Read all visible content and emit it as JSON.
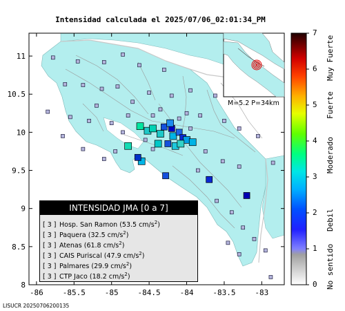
{
  "title": "Intensidad calculada el 2025/07/06_02:01:34_PM",
  "map": {
    "x_ticks": [
      "-86",
      "-85.5",
      "-85",
      "-84.5",
      "-84",
      "-83.5",
      "-83"
    ],
    "x_values": [
      -86,
      -85.5,
      -85,
      -84.5,
      -84,
      -83.5,
      -83
    ],
    "y_ticks": [
      "11",
      "10.5",
      "10",
      "9.5",
      "9",
      "8.5",
      "8"
    ],
    "y_values": [
      11,
      10.5,
      10,
      9.5,
      9,
      8.5,
      8
    ],
    "xlim": [
      -86.1,
      -82.7
    ],
    "ylim": [
      8.0,
      11.3
    ],
    "land_color": "#b3eeee",
    "sea_color": "#ffffff",
    "border_color": "#c8c8c8",
    "road_color": "#9a9a9a",
    "stations": [
      {
        "lon": -84.62,
        "lat": 10.08,
        "level": 3,
        "color": "#00e6a0"
      },
      {
        "lon": -84.52,
        "lat": 10.02,
        "level": 3,
        "color": "#1ec8c8"
      },
      {
        "lon": -84.45,
        "lat": 10.05,
        "level": 3,
        "color": "#00d2b4"
      },
      {
        "lon": -84.35,
        "lat": 9.98,
        "level": 3,
        "color": "#1ec8c8"
      },
      {
        "lon": -84.3,
        "lat": 10.07,
        "level": 2,
        "color": "#1450dc"
      },
      {
        "lon": -84.2,
        "lat": 10.05,
        "level": 2,
        "color": "#0000c8"
      },
      {
        "lon": -84.18,
        "lat": 9.95,
        "level": 3,
        "color": "#00b4e6"
      },
      {
        "lon": -84.1,
        "lat": 10.0,
        "level": 2,
        "color": "#1e64e6"
      },
      {
        "lon": -84.05,
        "lat": 9.93,
        "level": 2,
        "color": "#0a28d2"
      },
      {
        "lon": -84.0,
        "lat": 9.9,
        "level": 3,
        "color": "#00a0e6"
      },
      {
        "lon": -83.92,
        "lat": 9.87,
        "level": 3,
        "color": "#00b4e6"
      },
      {
        "lon": -84.15,
        "lat": 9.82,
        "level": 3,
        "color": "#1ec8dc"
      },
      {
        "lon": -84.25,
        "lat": 9.85,
        "level": 2,
        "color": "#1450dc"
      },
      {
        "lon": -84.08,
        "lat": 9.85,
        "level": 3,
        "color": "#32d2c8"
      },
      {
        "lon": -84.22,
        "lat": 10.12,
        "level": 3,
        "color": "#1e8cf0"
      },
      {
        "lon": -84.38,
        "lat": 9.85,
        "level": 3,
        "color": "#00c8c8"
      },
      {
        "lon": -84.78,
        "lat": 9.82,
        "level": 3,
        "color": "#14dcb4"
      },
      {
        "lon": -84.6,
        "lat": 9.62,
        "level": 3,
        "color": "#00b4e6"
      },
      {
        "lon": -84.65,
        "lat": 9.67,
        "level": 2,
        "color": "#0032c8"
      },
      {
        "lon": -84.28,
        "lat": 9.43,
        "level": 2,
        "color": "#1450dc"
      },
      {
        "lon": -83.7,
        "lat": 9.38,
        "level": 2,
        "color": "#0a28d2"
      },
      {
        "lon": -83.2,
        "lat": 9.17,
        "level": 2,
        "color": "#0000b4"
      }
    ],
    "small_stations": [
      {
        "lon": -85.78,
        "lat": 10.98
      },
      {
        "lon": -85.45,
        "lat": 10.93
      },
      {
        "lon": -85.1,
        "lat": 10.92
      },
      {
        "lon": -84.85,
        "lat": 11.02
      },
      {
        "lon": -84.63,
        "lat": 10.88
      },
      {
        "lon": -84.3,
        "lat": 10.82
      },
      {
        "lon": -85.62,
        "lat": 10.63
      },
      {
        "lon": -85.38,
        "lat": 10.62
      },
      {
        "lon": -85.13,
        "lat": 10.57
      },
      {
        "lon": -84.92,
        "lat": 10.6
      },
      {
        "lon": -84.72,
        "lat": 10.4
      },
      {
        "lon": -84.5,
        "lat": 10.52
      },
      {
        "lon": -84.2,
        "lat": 10.48
      },
      {
        "lon": -83.95,
        "lat": 10.55
      },
      {
        "lon": -83.62,
        "lat": 10.48
      },
      {
        "lon": -85.85,
        "lat": 10.27
      },
      {
        "lon": -85.55,
        "lat": 10.2
      },
      {
        "lon": -85.3,
        "lat": 10.15
      },
      {
        "lon": -85.0,
        "lat": 10.12
      },
      {
        "lon": -84.85,
        "lat": 10.0
      },
      {
        "lon": -84.35,
        "lat": 10.3
      },
      {
        "lon": -84.0,
        "lat": 10.25
      },
      {
        "lon": -83.82,
        "lat": 10.22
      },
      {
        "lon": -83.5,
        "lat": 10.15
      },
      {
        "lon": -83.3,
        "lat": 10.05
      },
      {
        "lon": -83.05,
        "lat": 9.95
      },
      {
        "lon": -85.65,
        "lat": 9.95
      },
      {
        "lon": -85.38,
        "lat": 9.78
      },
      {
        "lon": -85.1,
        "lat": 9.65
      },
      {
        "lon": -84.95,
        "lat": 9.75
      },
      {
        "lon": -83.75,
        "lat": 9.75
      },
      {
        "lon": -83.52,
        "lat": 9.62
      },
      {
        "lon": -83.3,
        "lat": 9.55
      },
      {
        "lon": -82.85,
        "lat": 9.6
      },
      {
        "lon": -83.85,
        "lat": 9.5
      },
      {
        "lon": -83.6,
        "lat": 9.1
      },
      {
        "lon": -83.4,
        "lat": 8.95
      },
      {
        "lon": -83.25,
        "lat": 8.75
      },
      {
        "lon": -83.1,
        "lat": 8.6
      },
      {
        "lon": -82.95,
        "lat": 8.45
      },
      {
        "lon": -83.45,
        "lat": 8.55
      },
      {
        "lon": -83.3,
        "lat": 8.4
      },
      {
        "lon": -82.88,
        "lat": 8.1
      },
      {
        "lon": -84.45,
        "lat": 10.22
      },
      {
        "lon": -84.1,
        "lat": 10.18
      },
      {
        "lon": -83.95,
        "lat": 10.05
      },
      {
        "lon": -84.55,
        "lat": 9.9
      },
      {
        "lon": -84.45,
        "lat": 9.78
      },
      {
        "lon": -85.2,
        "lat": 10.35
      },
      {
        "lon": -84.78,
        "lat": 10.22
      }
    ]
  },
  "inset": {
    "label": "M=5.2 P=34km",
    "epicenter_color": "#e60000"
  },
  "legend": {
    "heading": "INTENSIDAD JMA [0 a 7]",
    "entries": [
      {
        "level": "[ 3 ]",
        "station": "Hosp. San Ramon",
        "value": "(53.5 cm/s",
        "sup": "2",
        ")": ")"
      },
      {
        "level": "[ 3 ]",
        "station": "Paquera",
        "value": "(32.5 cm/s",
        "sup": "2",
        ")": ")"
      },
      {
        "level": "[ 3 ]",
        "station": "Atenas",
        "value": "(61.8 cm/s",
        "sup": "2",
        ")": ")"
      },
      {
        "level": "[ 3 ]",
        "station": "CAIS Puriscal",
        "value": "(47.9 cm/s",
        "sup": "2",
        ")": ")"
      },
      {
        "level": "[ 3 ]",
        "station": "Palmares",
        "value": "(29.9 cm/s",
        "sup": "2",
        ")": ")"
      },
      {
        "level": "[ 3 ]",
        "station": "CTP Jaco",
        "value": "(18.2 cm/s",
        "sup": "2",
        ")": ")"
      }
    ]
  },
  "colorbar": {
    "ticks": [
      "0",
      "1",
      "2",
      "3",
      "4",
      "5",
      "6",
      "7"
    ],
    "categories": [
      "No sentido",
      "Debil",
      "Moderado",
      "Fuerte",
      "Muy Fuerte"
    ],
    "stops": [
      "#ffffff",
      "#c8c8c8",
      "#8c8c8c",
      "#0000b4",
      "#0000ff",
      "#00a0ff",
      "#00e6e6",
      "#00ff64",
      "#78ff00",
      "#ffff00",
      "#ffa000",
      "#ff0000",
      "#b40000",
      "#320000"
    ]
  },
  "footer": "LISUCR 20250706200135"
}
